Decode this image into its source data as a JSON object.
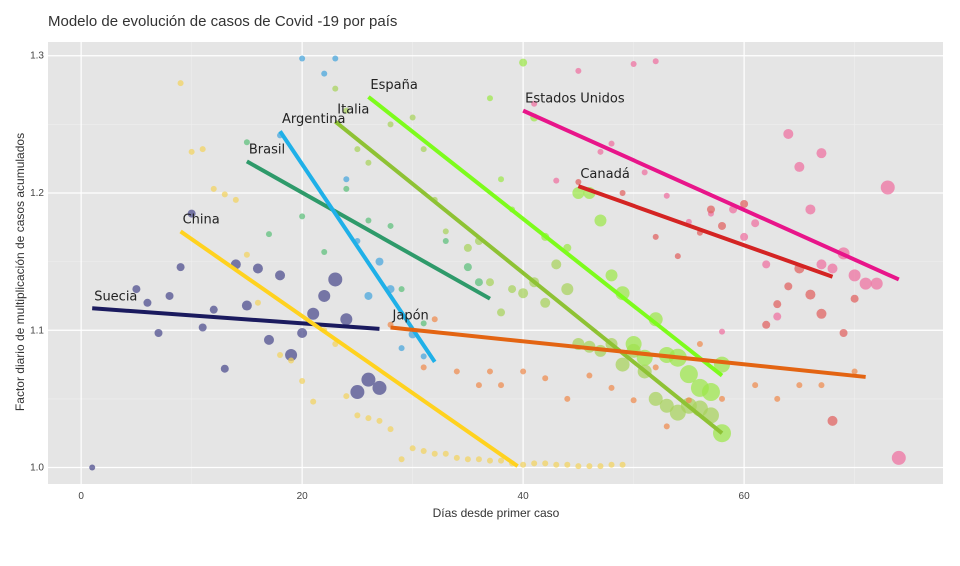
{
  "chart_data": {
    "type": "scatter",
    "title": "Modelo de evolución de casos de Covid -19 por país",
    "xlabel": "Días desde primer caso",
    "ylabel": "Factor diario de multiplicación de casos acumulados",
    "xlim": [
      -3,
      78
    ],
    "ylim": [
      0.988,
      1.31
    ],
    "xticks": [
      0,
      20,
      40,
      60
    ],
    "yticks": [
      1.0,
      1.1,
      1.2,
      1.3
    ],
    "ytick_labels": [
      "1.0",
      "1.1",
      "1.2",
      "1.3"
    ],
    "grid": true,
    "background": "#e5e5e5",
    "series": [
      {
        "name": "Suecia",
        "color": "#1a1a5e",
        "point_color": "#4a4a8c",
        "trend": [
          [
            1,
            1.116
          ],
          [
            27,
            1.101
          ]
        ],
        "points": [
          [
            1,
            1.0,
            3
          ],
          [
            5,
            1.13,
            4
          ],
          [
            6,
            1.12,
            4
          ],
          [
            7,
            1.098,
            4
          ],
          [
            8,
            1.125,
            4
          ],
          [
            9,
            1.146,
            4
          ],
          [
            10,
            1.185,
            4
          ],
          [
            11,
            1.102,
            4
          ],
          [
            12,
            1.115,
            4
          ],
          [
            13,
            1.072,
            4
          ],
          [
            14,
            1.148,
            5
          ],
          [
            15,
            1.118,
            5
          ],
          [
            16,
            1.145,
            5
          ],
          [
            17,
            1.093,
            5
          ],
          [
            18,
            1.14,
            5
          ],
          [
            19,
            1.082,
            6
          ],
          [
            20,
            1.098,
            5
          ],
          [
            21,
            1.112,
            6
          ],
          [
            22,
            1.125,
            6
          ],
          [
            23,
            1.137,
            7
          ],
          [
            24,
            1.108,
            6
          ],
          [
            25,
            1.055,
            7
          ],
          [
            26,
            1.064,
            7
          ],
          [
            27,
            1.058,
            7
          ]
        ]
      },
      {
        "name": "China",
        "color": "#ffd21f",
        "point_color": "#f2d35e",
        "trend": [
          [
            9,
            1.172
          ],
          [
            39.5,
            1.001
          ]
        ],
        "points": [
          [
            9,
            1.28,
            3
          ],
          [
            10,
            1.23,
            3
          ],
          [
            11,
            1.232,
            3
          ],
          [
            12,
            1.203,
            3
          ],
          [
            13,
            1.199,
            3
          ],
          [
            14,
            1.195,
            3
          ],
          [
            15,
            1.155,
            3
          ],
          [
            16,
            1.12,
            3
          ],
          [
            18,
            1.082,
            3
          ],
          [
            19,
            1.078,
            3
          ],
          [
            20,
            1.063,
            3
          ],
          [
            21,
            1.048,
            3
          ],
          [
            22,
            1.1,
            3
          ],
          [
            23,
            1.09,
            3
          ],
          [
            24,
            1.052,
            3
          ],
          [
            25,
            1.038,
            3
          ],
          [
            26,
            1.036,
            3
          ],
          [
            27,
            1.034,
            3
          ],
          [
            28,
            1.028,
            3
          ],
          [
            29,
            1.006,
            3
          ],
          [
            30,
            1.014,
            3
          ],
          [
            31,
            1.012,
            3
          ],
          [
            32,
            1.01,
            3
          ],
          [
            33,
            1.01,
            3
          ],
          [
            34,
            1.007,
            3
          ],
          [
            35,
            1.006,
            3
          ],
          [
            36,
            1.006,
            3
          ],
          [
            37,
            1.005,
            3
          ],
          [
            38,
            1.005,
            3
          ],
          [
            39,
            1.003,
            3
          ],
          [
            40,
            1.002,
            3
          ],
          [
            41,
            1.003,
            3
          ],
          [
            42,
            1.003,
            3
          ],
          [
            43,
            1.002,
            3
          ],
          [
            44,
            1.002,
            3
          ],
          [
            45,
            1.001,
            3
          ],
          [
            46,
            1.001,
            3
          ],
          [
            47,
            1.001,
            3
          ],
          [
            48,
            1.002,
            3
          ],
          [
            49,
            1.002,
            3
          ]
        ]
      },
      {
        "name": "Brasil",
        "color": "#2e9a6a",
        "point_color": "#5cbf7a",
        "trend": [
          [
            15,
            1.223
          ],
          [
            37,
            1.123
          ]
        ],
        "points": [
          [
            15,
            1.237,
            3
          ],
          [
            17,
            1.17,
            3
          ],
          [
            20,
            1.183,
            3
          ],
          [
            22,
            1.157,
            3
          ],
          [
            24,
            1.203,
            3
          ],
          [
            26,
            1.18,
            3
          ],
          [
            28,
            1.176,
            3
          ],
          [
            29,
            1.13,
            3
          ],
          [
            31,
            1.105,
            3
          ],
          [
            33,
            1.165,
            3
          ],
          [
            35,
            1.146,
            4
          ],
          [
            36,
            1.135,
            4
          ]
        ]
      },
      {
        "name": "Argentina",
        "color": "#1fb0e8",
        "point_color": "#45a5dd",
        "trend": [
          [
            18,
            1.245
          ],
          [
            32,
            1.077
          ]
        ],
        "points": [
          [
            18,
            1.242,
            3
          ],
          [
            20,
            1.298,
            3
          ],
          [
            22,
            1.287,
            3
          ],
          [
            23,
            1.298,
            3
          ],
          [
            24,
            1.21,
            3
          ],
          [
            25,
            1.165,
            3
          ],
          [
            26,
            1.125,
            4
          ],
          [
            27,
            1.15,
            4
          ],
          [
            28,
            1.13,
            4
          ],
          [
            29,
            1.087,
            3
          ],
          [
            30,
            1.097,
            4
          ],
          [
            31,
            1.081,
            3
          ]
        ]
      },
      {
        "name": "Italia",
        "color": "#8ec234",
        "point_color": "#a7d35c",
        "trend": [
          [
            23,
            1.252
          ],
          [
            58,
            1.025
          ]
        ],
        "points": [
          [
            23,
            1.276,
            3
          ],
          [
            24,
            1.26,
            3
          ],
          [
            25,
            1.232,
            3
          ],
          [
            26,
            1.222,
            3
          ],
          [
            28,
            1.25,
            3
          ],
          [
            30,
            1.255,
            3
          ],
          [
            31,
            1.232,
            3
          ],
          [
            32,
            1.195,
            3
          ],
          [
            33,
            1.172,
            3
          ],
          [
            35,
            1.16,
            4
          ],
          [
            36,
            1.165,
            4
          ],
          [
            37,
            1.135,
            4
          ],
          [
            38,
            1.113,
            4
          ],
          [
            39,
            1.13,
            4
          ],
          [
            40,
            1.127,
            5
          ],
          [
            41,
            1.135,
            5
          ],
          [
            42,
            1.12,
            5
          ],
          [
            43,
            1.148,
            5
          ],
          [
            44,
            1.13,
            6
          ],
          [
            45,
            1.09,
            6
          ],
          [
            46,
            1.088,
            6
          ],
          [
            47,
            1.085,
            6
          ],
          [
            48,
            1.09,
            6
          ],
          [
            49,
            1.075,
            7
          ],
          [
            50,
            1.085,
            7
          ],
          [
            51,
            1.07,
            7
          ],
          [
            52,
            1.05,
            7
          ],
          [
            53,
            1.045,
            7
          ],
          [
            54,
            1.04,
            8
          ],
          [
            55,
            1.045,
            8
          ],
          [
            56,
            1.043,
            8
          ],
          [
            57,
            1.038,
            8
          ]
        ]
      },
      {
        "name": "España",
        "color": "#7dfc1c",
        "point_color": "#9de84a",
        "trend": [
          [
            26,
            1.27
          ],
          [
            58,
            1.067
          ]
        ],
        "points": [
          [
            37,
            1.269,
            3
          ],
          [
            38,
            1.21,
            3
          ],
          [
            39,
            1.188,
            3
          ],
          [
            40,
            1.295,
            4
          ],
          [
            41,
            1.255,
            4
          ],
          [
            42,
            1.168,
            4
          ],
          [
            44,
            1.16,
            4
          ],
          [
            45,
            1.2,
            6
          ],
          [
            46,
            1.2,
            6
          ],
          [
            47,
            1.18,
            6
          ],
          [
            48,
            1.14,
            6
          ],
          [
            49,
            1.127,
            7
          ],
          [
            50,
            1.09,
            8
          ],
          [
            51,
            1.08,
            8
          ],
          [
            52,
            1.108,
            7
          ],
          [
            53,
            1.082,
            8
          ],
          [
            54,
            1.08,
            9
          ],
          [
            55,
            1.068,
            9
          ],
          [
            56,
            1.058,
            9
          ],
          [
            57,
            1.055,
            9
          ],
          [
            58,
            1.025,
            9
          ],
          [
            58,
            1.075,
            8
          ]
        ]
      },
      {
        "name": "Estados Unidos",
        "color": "#e8158a",
        "point_color": "#ee6f9f",
        "trend": [
          [
            40,
            1.26
          ],
          [
            74,
            1.137
          ]
        ],
        "points": [
          [
            41,
            1.265,
            3
          ],
          [
            43,
            1.209,
            3
          ],
          [
            45,
            1.289,
            3
          ],
          [
            47,
            1.23,
            3
          ],
          [
            48,
            1.236,
            3
          ],
          [
            50,
            1.294,
            3
          ],
          [
            51,
            1.215,
            3
          ],
          [
            52,
            1.296,
            3
          ],
          [
            53,
            1.198,
            3
          ],
          [
            55,
            1.179,
            3
          ],
          [
            57,
            1.185,
            3
          ],
          [
            58,
            1.099,
            3
          ],
          [
            59,
            1.188,
            4
          ],
          [
            60,
            1.168,
            4
          ],
          [
            61,
            1.178,
            4
          ],
          [
            62,
            1.148,
            4
          ],
          [
            63,
            1.11,
            4
          ],
          [
            64,
            1.243,
            5
          ],
          [
            65,
            1.219,
            5
          ],
          [
            66,
            1.188,
            5
          ],
          [
            67,
            1.148,
            5
          ],
          [
            67,
            1.229,
            5
          ],
          [
            68,
            1.145,
            5
          ],
          [
            69,
            1.156,
            6
          ],
          [
            70,
            1.14,
            6
          ],
          [
            71,
            1.134,
            6
          ],
          [
            72,
            1.134,
            6
          ],
          [
            73,
            1.204,
            7
          ],
          [
            74,
            1.007,
            7
          ]
        ]
      },
      {
        "name": "Canadá",
        "color": "#d42423",
        "point_color": "#e0605e",
        "trend": [
          [
            45,
            1.205
          ],
          [
            68,
            1.139
          ]
        ],
        "points": [
          [
            45,
            1.208,
            3
          ],
          [
            49,
            1.2,
            3
          ],
          [
            52,
            1.168,
            3
          ],
          [
            54,
            1.154,
            3
          ],
          [
            56,
            1.171,
            3
          ],
          [
            57,
            1.188,
            4
          ],
          [
            58,
            1.176,
            4
          ],
          [
            60,
            1.192,
            4
          ],
          [
            62,
            1.104,
            4
          ],
          [
            63,
            1.119,
            4
          ],
          [
            64,
            1.132,
            4
          ],
          [
            65,
            1.145,
            5
          ],
          [
            66,
            1.126,
            5
          ],
          [
            67,
            1.112,
            5
          ],
          [
            68,
            1.034,
            5
          ],
          [
            69,
            1.098,
            4
          ],
          [
            70,
            1.123,
            4
          ]
        ]
      },
      {
        "name": "Japón",
        "color": "#e36412",
        "point_color": "#ef8a4e",
        "trend": [
          [
            28,
            1.102
          ],
          [
            71,
            1.066
          ]
        ],
        "points": [
          [
            28,
            1.104,
            3
          ],
          [
            31,
            1.073,
            3
          ],
          [
            32,
            1.108,
            3
          ],
          [
            34,
            1.07,
            3
          ],
          [
            36,
            1.06,
            3
          ],
          [
            37,
            1.07,
            3
          ],
          [
            38,
            1.06,
            3
          ],
          [
            40,
            1.07,
            3
          ],
          [
            42,
            1.065,
            3
          ],
          [
            44,
            1.05,
            3
          ],
          [
            46,
            1.067,
            3
          ],
          [
            48,
            1.058,
            3
          ],
          [
            50,
            1.049,
            3
          ],
          [
            52,
            1.073,
            3
          ],
          [
            53,
            1.03,
            3
          ],
          [
            55,
            1.049,
            3
          ],
          [
            56,
            1.09,
            3
          ],
          [
            58,
            1.05,
            3
          ],
          [
            61,
            1.06,
            3
          ],
          [
            63,
            1.05,
            3
          ],
          [
            65,
            1.06,
            3
          ],
          [
            67,
            1.06,
            3
          ],
          [
            70,
            1.07,
            3
          ]
        ]
      }
    ]
  }
}
